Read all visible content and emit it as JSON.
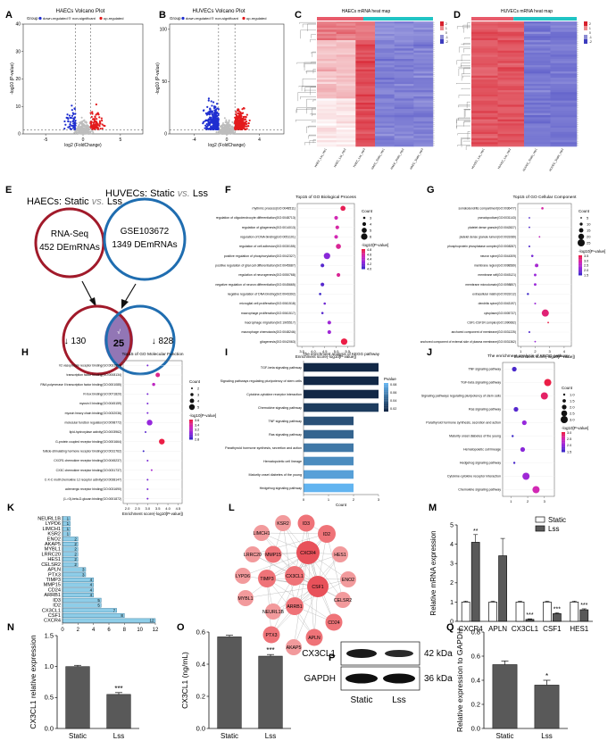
{
  "panels": {
    "A": "A",
    "B": "B",
    "C": "C",
    "D": "D",
    "E": "E",
    "F": "F",
    "G": "G",
    "H": "H",
    "I": "I",
    "J": "J",
    "K": "K",
    "L": "L",
    "M": "M",
    "N": "N",
    "O": "O",
    "P": "P",
    "Q": "Q"
  },
  "volcano": [
    {
      "title": "HAECs Volcano Plot",
      "xlabel": "log2 (FoldChange)",
      "ylabel": "-log10 (P-value)",
      "legend_group": "Group",
      "legend": [
        "down-regulated",
        "non-significant",
        "up-regulated"
      ],
      "xticks": [
        "-5",
        "0",
        "5"
      ],
      "yticks": [
        "0",
        "10",
        "20",
        "30",
        "40"
      ],
      "xlim": [
        -8,
        8
      ],
      "ylim": [
        0,
        40
      ]
    },
    {
      "title": "HUVECs Volcano Plot",
      "xlabel": "log2 (FoldChange)",
      "ylabel": "-log10 (P-value)",
      "legend_group": "Group",
      "legend": [
        "down-regulated",
        "non-significant",
        "up-regulated"
      ],
      "xticks": [
        "-4",
        "0",
        "4"
      ],
      "yticks": [
        "0",
        "50",
        "100"
      ],
      "xlim": [
        -7,
        7
      ],
      "ylim": [
        0,
        105
      ]
    }
  ],
  "heatmaps": [
    {
      "title": "HAECs mRNA heat map",
      "columns": [
        "HAEC_Lss_rep1",
        "HAEC_Lss_rep2",
        "HAEC_Lss_rep3",
        "HAEC_Static_rep1",
        "HAEC_Static_rep2",
        "HAEC_Static_rep3"
      ],
      "scale": [
        "2",
        "1",
        "0",
        "-1",
        "-2"
      ]
    },
    {
      "title": "HUVECs mRNA heat map",
      "columns": [
        "HUVEC_Lss_rep1",
        "HUVEC_Lss_rep2",
        "HUVEC_Static_rep1",
        "HUVEC_Static_rep2"
      ],
      "scale": [
        "2",
        "1",
        "0",
        "-1",
        "-2"
      ]
    }
  ],
  "venn": {
    "left_title": "HAECs: Static",
    "left_vs": "vs.",
    "left_tail": "Lss",
    "right_title": "HUVECs: Static",
    "right_vs": "vs.",
    "right_tail": "Lss",
    "c1_line1": "RNA-Seq",
    "c1_line2": "452 DEmRNAs",
    "c2_line1": "GSE103672",
    "c2_line2": "1349 DEmRNAs",
    "left_only": "↓ 130",
    "overlap": "25",
    "overlap_mark": "√",
    "right_only": "↓ 828",
    "red": "#a11a2a",
    "blue": "#1f6db0",
    "overlap_fill": "#7f5ea8"
  },
  "chart_data": [
    {
      "panel": "F",
      "type": "scatter",
      "title": "Top15 of GO Biological Process",
      "xlabel": "Enrichment score(-log10[P-value])",
      "xticks": [
        "3.5",
        "4.0",
        "4.5",
        "5.0",
        "5.5"
      ],
      "xlim": [
        3.3,
        5.8
      ],
      "terms": [
        "rhythmic process(GO:0048511)",
        "regulation of oligodendrocyte differentiation(GO:0048713)",
        "regulation of gliogenesis(GO:0014013)",
        "regulation of DNA binding(GO:0051101)",
        "regulation of cell adhesion(GO:0030155)",
        "positive regulation of phosphorylation(GO:0042327)",
        "positive regulation of glial cell differentiation(GO:0045687)",
        "regulation of neurogenesis(GO:0050768)",
        "negative regulation of neuron differentiation(GO:0045665)",
        "negative regulation of DNA binding(GO:0043392)",
        "microglial cell proliferation(GO:0061518)",
        "macrophage proliferation(GO:0061517)",
        "macrophage migration(GO:1905517)",
        "macrophage chemotaxis(GO:0048246)",
        "gliogenesis(GO:0042063)"
      ],
      "x": [
        5.3,
        5.0,
        5.05,
        5.0,
        5.1,
        4.6,
        4.4,
        5.1,
        4.4,
        4.3,
        4.5,
        4.4,
        4.7,
        4.7,
        5.35
      ],
      "count": [
        4,
        3,
        3,
        3,
        4,
        5,
        3,
        3,
        3,
        2,
        2,
        2,
        3,
        3,
        5
      ],
      "legend_count_title": "Count",
      "legend_count": [
        "3",
        "4",
        "5",
        "6"
      ],
      "legend_p_title": "-log10[P-value]",
      "legend_p": [
        "4.8",
        "4.6",
        "4.4",
        "4.2",
        "4.0"
      ]
    },
    {
      "panel": "G",
      "type": "scatter",
      "title": "Top15 of GO Cellular Component",
      "xlabel": "Enrichment score(-log10[P-value])",
      "xticks": [
        "1",
        "2",
        "3",
        "4"
      ],
      "xlim": [
        0.8,
        4.5
      ],
      "terms": [
        "somatodendritic compartment(GO:0036477)",
        "pseudopodium(GO:0031143)",
        "platelet dense granule(GO:0042827)",
        "platelet dense granule lumen(GO:0031089)",
        "phosphoprotein phosphatase complex(GO:0008287)",
        "neuron spine(GO:0044309)",
        "membrane region(GO:0098589)",
        "membrane raft(GO:0045121)",
        "membrane microdomain(GO:0098857)",
        "extracellular matrix(GO:0031012)",
        "dendritic spine(GO:0043197)",
        "cytoplasm(GO:0005737)",
        "CSF1-CSF1R complex(GO:1990682)",
        "anchored component of membrane(GO:0031225)",
        "anchored component of external side of plasma membrane(GO:0031362)"
      ],
      "x": [
        2.5,
        1.6,
        1.6,
        2.3,
        1.6,
        1.8,
        2.1,
        2.0,
        2.0,
        1.5,
        2.0,
        2.7,
        2.9,
        1.6,
        2.0
      ],
      "count": [
        5,
        2,
        2,
        2,
        3,
        5,
        10,
        6,
        6,
        4,
        3,
        25,
        2,
        3,
        2
      ],
      "legend_count_title": "Count",
      "legend_count": [
        "5",
        "10",
        "15",
        "20",
        "25"
      ],
      "legend_p_title": "-log10[P-value]",
      "legend_p": [
        "3.5",
        "3.0",
        "2.5",
        "2.0",
        "1.5"
      ]
    },
    {
      "panel": "H",
      "type": "scatter",
      "title": "Top15 of GO Molecular Function",
      "xlabel": "Enrichment score(-log10[P-value])",
      "xticks": [
        "2.0",
        "2.5",
        "3.0",
        "3.5",
        "4.0",
        "4.5"
      ],
      "xlim": [
        1.8,
        4.7
      ],
      "terms": [
        "V2 vasopressin receptor binding(GO:0031894)",
        "transcription factor binding(GO:0008134)",
        "RNA polymerase II transcription factor binding(GO:0001085)",
        "R-box binding(GO:0071820)",
        "myosin II binding(GO:0045159)",
        "myosin heavy chain binding(GO:0032036)",
        "molecular function regulator(GO:0098772)",
        "lipid-hydroxylase activity(GO:0003962)",
        "G-protein coupled receptor binding(GO:0001664)",
        "follicle-stimulating hormone receptor binding(GO:0031762)",
        "CXCR1 chemokine receptor binding(GO:0045237)",
        "CX3C chemokine receptor binding(GO:0031737)",
        "C-X-C motif chemokine 12 receptor activity(GO:0038147)",
        "adrenergic receptor binding(GO:0031690)",
        "(1->3)-beta-D-glucan binding(GO:0001872)"
      ],
      "x": [
        3.0,
        3.5,
        3.3,
        3.0,
        3.0,
        3.0,
        3.1,
        2.9,
        3.7,
        2.8,
        3.0,
        3.2,
        3.0,
        3.0,
        3.0
      ],
      "count": [
        2,
        4,
        3,
        2,
        2,
        2,
        5,
        2,
        5,
        2,
        2,
        2,
        2,
        2,
        2
      ],
      "legend_count_title": "Count",
      "legend_count": [
        "2",
        "3",
        "4",
        "5"
      ],
      "legend_p_title": "-log10[P-value]",
      "legend_p": [
        "3.6",
        "3.4",
        "3.2",
        "3.0",
        "2.8"
      ]
    },
    {
      "panel": "I",
      "type": "bar",
      "orientation": "horizontal",
      "title": "The enrichment analysis of KEGG pathway",
      "xlabel": "Count",
      "xticks": [
        "0",
        "1",
        "2",
        "3"
      ],
      "xlim": [
        0,
        3
      ],
      "categories": [
        "TGF-beta signaling pathway",
        "Signaling pathways regulating pluripotency of stem cells",
        "Cytokine-cytokine receptor interaction",
        "Chemokine signaling pathway",
        "TNF signaling pathway",
        "Ras signaling pathway",
        "Parathyroid hormone synthesis, secretion and action",
        "Hematopoietic cell lineage",
        "Maturity onset diabetes of the young",
        "Hedgehog signaling pathway"
      ],
      "values": [
        3,
        3,
        3,
        3,
        2,
        2,
        2,
        2,
        2,
        2
      ],
      "pvalue": [
        0.03,
        0.03,
        0.03,
        0.04,
        0.05,
        0.06,
        0.07,
        0.08,
        0.09,
        0.1
      ],
      "legend_title": "Pvalue",
      "legend": [
        "0.08",
        "0.06",
        "0.04",
        "0.02"
      ]
    },
    {
      "panel": "J",
      "type": "scatter",
      "title": "The enrichment analysis of KEGG pathway",
      "xlabel": "",
      "xticks": [
        "1",
        "2",
        "3"
      ],
      "xlim": [
        0.5,
        3.6
      ],
      "terms": [
        "TNF signaling pathway",
        "TGF-beta signaling pathway",
        "Signaling pathways regulating pluripotency of stem cells",
        "Ras signaling pathway",
        "Parathyroid hormone synthesis, secretion and action",
        "Maturity onset diabetes of the young",
        "Hematopoietic cell lineage",
        "Hedgehog signaling pathway",
        "Cytokine-cytokine receptor interaction",
        "Chemokine signaling pathway"
      ],
      "x": [
        1.2,
        3.2,
        3.0,
        1.3,
        1.8,
        1.1,
        1.7,
        1.2,
        1.9,
        2.5
      ],
      "count": [
        2,
        3,
        3,
        2,
        2,
        1,
        2,
        1,
        3,
        3
      ],
      "legend_count_title": "Count",
      "legend_count": [
        "1.0",
        "1.5",
        "2.0",
        "2.5",
        "3.0"
      ],
      "legend_p_title": "-log10[P-value]",
      "legend_p": [
        "3.0",
        "2.5",
        "2.0",
        "1.5"
      ]
    },
    {
      "panel": "K",
      "type": "bar",
      "orientation": "horizontal",
      "xticks": [
        "0",
        "2",
        "4",
        "6",
        "8",
        "10",
        "12"
      ],
      "xlim": [
        0,
        12
      ],
      "categories": [
        "NEURL1B",
        "LYPD6",
        "LIMCH1",
        "KSR2",
        "ENO2",
        "AKAP5",
        "MYBL1",
        "LRRC20",
        "HES1",
        "CELSR2",
        "APLN",
        "PTX3",
        "TIMP3",
        "MMP15",
        "CD24",
        "ARRB1",
        "ID3",
        "ID2",
        "CX3CL1",
        "CSF1",
        "CXCR4"
      ],
      "values": [
        1,
        1,
        1,
        1,
        2,
        2,
        2,
        2,
        2,
        2,
        3,
        3,
        4,
        4,
        4,
        4,
        5,
        5,
        7,
        8,
        12
      ]
    },
    {
      "panel": "L",
      "type": "network",
      "nodes": [
        "KSR2",
        "ID3",
        "LIMCH1",
        "ID2",
        "LRRC20",
        "MMP15",
        "CXCR4",
        "HES1",
        "LYPD6",
        "TIMP3",
        "CX3CL1",
        "ENO2",
        "MYBL1",
        "CSF1",
        "CELSR2",
        "NEURL1B",
        "ARRB1",
        "CD24",
        "PTX3",
        "APLN",
        "AKAP5"
      ]
    },
    {
      "panel": "M",
      "type": "bar",
      "ylabel": "Relative mRNA expression",
      "yticks": [
        "0",
        "1",
        "2",
        "3",
        "4",
        "5"
      ],
      "ylim": [
        0,
        5
      ],
      "categories": [
        "CXCR4",
        "APLN",
        "CX3CL1",
        "CSF1",
        "HES1"
      ],
      "series": [
        {
          "name": "Static",
          "values": [
            1.0,
            1.0,
            1.0,
            1.0,
            1.0
          ]
        },
        {
          "name": "Lss",
          "values": [
            4.1,
            3.4,
            0.1,
            0.4,
            0.6
          ]
        }
      ],
      "errors": [
        [
          0.05,
          0.05,
          0.05,
          0.05,
          0.05
        ],
        [
          0.4,
          0.9,
          0.03,
          0.05,
          0.05
        ]
      ],
      "stars": [
        "**",
        "",
        "***",
        "***",
        "***"
      ]
    },
    {
      "panel": "N",
      "type": "bar",
      "ylabel": "CX3CL1 relative expression",
      "yticks": [
        "0.0",
        "0.5",
        "1.0",
        "1.5"
      ],
      "ylim": [
        0,
        1.5
      ],
      "categories": [
        "Static",
        "Lss"
      ],
      "values": [
        1.0,
        0.55
      ],
      "errors": [
        0.02,
        0.03
      ],
      "stars": [
        "",
        "***"
      ]
    },
    {
      "panel": "O",
      "type": "bar",
      "ylabel": "CX3CL1 (ng/mL)",
      "yticks": [
        "0.0",
        "0.2",
        "0.4",
        "0.6"
      ],
      "ylim": [
        0,
        0.6
      ],
      "categories": [
        "Static",
        "Lss"
      ],
      "values": [
        0.57,
        0.45
      ],
      "errors": [
        0.01,
        0.01
      ],
      "stars": [
        "",
        "***"
      ]
    },
    {
      "panel": "Q",
      "type": "bar",
      "ylabel": "Relative expression to GAPDH",
      "yticks": [
        "0.0",
        "0.2",
        "0.4",
        "0.6",
        "0.8"
      ],
      "ylim": [
        0,
        0.8
      ],
      "categories": [
        "Static",
        "Lss"
      ],
      "values": [
        0.53,
        0.36
      ],
      "errors": [
        0.03,
        0.04
      ],
      "stars": [
        "",
        "*"
      ]
    }
  ],
  "western": {
    "bands": [
      "CX3CL1",
      "GAPDH"
    ],
    "sizes": [
      "42 kDa",
      "36 kDa"
    ],
    "lanes": [
      "Static",
      "Lss"
    ]
  }
}
